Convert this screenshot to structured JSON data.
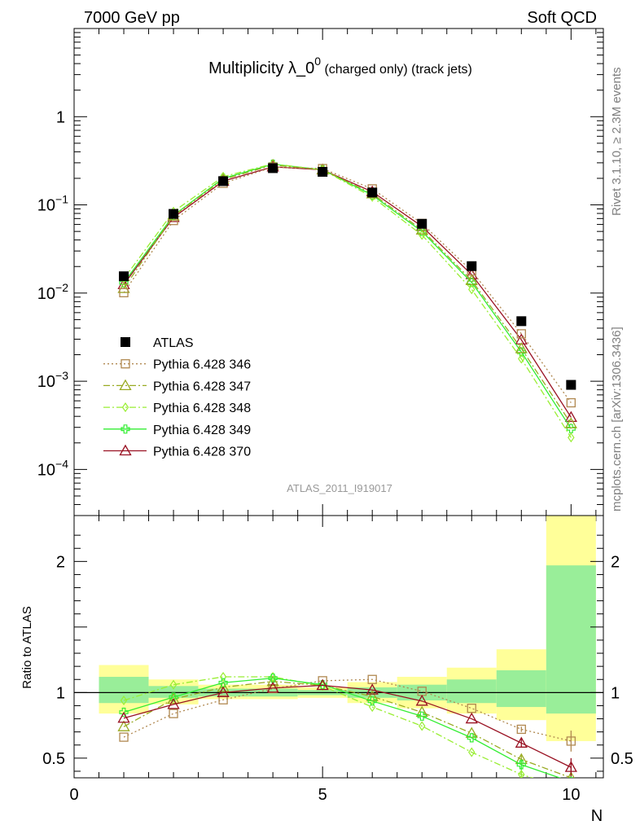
{
  "header": {
    "left": "7000 GeV pp",
    "right": "Soft QCD",
    "title_main": "Multiplicity λ_0",
    "title_sup": "0",
    "title_rest": " (charged only) (track jets)"
  },
  "side_labels": {
    "rivet": "Rivet 3.1.10, ≥ 2.3M events",
    "mcplots": "mcplots.cern.ch [arXiv:1306.3436]"
  },
  "analysis_id": "ATLAS_2011_I919017",
  "chart_data": [
    {
      "type": "scatter",
      "panel": "main",
      "log_y": true,
      "xlim": [
        0,
        10.65
      ],
      "ylim": [
        3e-05,
        10
      ],
      "grid": false,
      "legend_placement": "middle-left",
      "x": [
        1,
        2,
        3,
        4,
        5,
        6,
        7,
        8,
        9,
        10
      ],
      "y_ticks": [
        {
          "v": 1,
          "m": "1",
          "e": ""
        },
        {
          "v": 0.1,
          "m": "10",
          "e": "−1"
        },
        {
          "v": 0.01,
          "m": "10",
          "e": "−2"
        },
        {
          "v": 0.001,
          "m": "10",
          "e": "−3"
        },
        {
          "v": 0.0001,
          "m": "10",
          "e": "−4"
        }
      ],
      "series": [
        {
          "name": "ATLAS",
          "color": "#000000",
          "marker": "square-filled",
          "line": "none",
          "values": [
            0.0155,
            0.079,
            0.186,
            0.261,
            0.237,
            0.138,
            0.061,
            0.0202,
            0.0048,
            0.00091
          ]
        },
        {
          "name": "Pythia 6.428 346",
          "color": "#b08850",
          "marker": "square-open",
          "line": "dotted",
          "values": [
            0.0101,
            0.0665,
            0.176,
            0.268,
            0.258,
            0.152,
            0.0615,
            0.0178,
            0.00345,
            0.00057
          ]
        },
        {
          "name": "Pythia 6.428 347",
          "color": "#99aa22",
          "marker": "triangle-open",
          "line": "dashdot",
          "values": [
            0.0113,
            0.075,
            0.194,
            0.283,
            0.25,
            0.134,
            0.052,
            0.0139,
            0.00235,
            0.00033
          ]
        },
        {
          "name": "Pythia 6.428 348",
          "color": "#99ee33",
          "marker": "diamond-open",
          "line": "dashdot",
          "values": [
            0.0145,
            0.084,
            0.209,
            0.292,
            0.249,
            0.123,
            0.0455,
            0.011,
            0.0018,
            0.00023
          ]
        },
        {
          "name": "Pythia 6.428 349",
          "color": "#33ee33",
          "marker": "cross-open",
          "line": "solid",
          "values": [
            0.0131,
            0.076,
            0.2,
            0.289,
            0.251,
            0.129,
            0.05,
            0.0132,
            0.00215,
            0.00029
          ]
        },
        {
          "name": "Pythia 6.428 370",
          "color": "#991122",
          "marker": "triangle-open",
          "line": "solid",
          "values": [
            0.0125,
            0.072,
            0.186,
            0.27,
            0.25,
            0.141,
            0.057,
            0.0162,
            0.00295,
            0.00039
          ]
        }
      ]
    },
    {
      "type": "scatter",
      "panel": "ratio",
      "ylabel": "Ratio to ATLAS",
      "xlabel": "N",
      "xlim": [
        0,
        10.65
      ],
      "ylim": [
        0.35,
        2.35
      ],
      "reference_line": 1,
      "x_ticks": [
        {
          "v": 0,
          "t": "0"
        },
        {
          "v": 5,
          "t": "5"
        },
        {
          "v": 10,
          "t": "10"
        }
      ],
      "y_ticks": [
        {
          "v": 2,
          "t": "2"
        },
        {
          "v": 1,
          "t": "1"
        },
        {
          "v": 0.5,
          "t": "0.5"
        }
      ],
      "bands": [
        {
          "x0": 0.5,
          "x1": 1.5,
          "yellow": [
            0.84,
            1.21
          ],
          "green": [
            0.92,
            1.12
          ]
        },
        {
          "x0": 1.5,
          "x1": 2.5,
          "yellow": [
            0.91,
            1.1
          ],
          "green": [
            0.96,
            1.05
          ]
        },
        {
          "x0": 2.5,
          "x1": 3.5,
          "yellow": [
            0.95,
            1.06
          ],
          "green": [
            0.97,
            1.03
          ]
        },
        {
          "x0": 3.5,
          "x1": 4.5,
          "yellow": [
            0.95,
            1.06
          ],
          "green": [
            0.97,
            1.03
          ]
        },
        {
          "x0": 4.5,
          "x1": 5.5,
          "yellow": [
            0.96,
            1.04
          ],
          "green": [
            0.98,
            1.02
          ]
        },
        {
          "x0": 5.5,
          "x1": 6.5,
          "yellow": [
            0.92,
            1.08
          ],
          "green": [
            0.96,
            1.04
          ]
        },
        {
          "x0": 6.5,
          "x1": 7.5,
          "yellow": [
            0.88,
            1.12
          ],
          "green": [
            0.94,
            1.06
          ]
        },
        {
          "x0": 7.5,
          "x1": 8.5,
          "yellow": [
            0.84,
            1.19
          ],
          "green": [
            0.92,
            1.1
          ]
        },
        {
          "x0": 8.5,
          "x1": 9.5,
          "yellow": [
            0.79,
            1.33
          ],
          "green": [
            0.89,
            1.17
          ]
        },
        {
          "x0": 9.5,
          "x1": 10.5,
          "yellow": [
            0.63,
            2.35
          ],
          "green": [
            0.84,
            1.97
          ]
        }
      ],
      "series": [
        {
          "name": "Pythia 6.428 346",
          "values": [
            0.66,
            0.84,
            0.945,
            1.03,
            1.09,
            1.1,
            1.01,
            0.88,
            0.72,
            0.63
          ],
          "errors": [
            0,
            0,
            0,
            0,
            0,
            0,
            0,
            0,
            0.02,
            0.08
          ]
        },
        {
          "name": "Pythia 6.428 347",
          "values": [
            0.74,
            0.95,
            1.04,
            1.085,
            1.055,
            0.97,
            0.85,
            0.69,
            0.49,
            0.35
          ],
          "errors": [
            0,
            0,
            0,
            0,
            0,
            0,
            0,
            0,
            0.03,
            0.05
          ]
        },
        {
          "name": "Pythia 6.428 348",
          "values": [
            0.94,
            1.06,
            1.12,
            1.12,
            1.05,
            0.89,
            0.745,
            0.545,
            0.375,
            0.26
          ],
          "errors": [
            0,
            0,
            0,
            0,
            0,
            0,
            0,
            0,
            0.03,
            0.05
          ]
        },
        {
          "name": "Pythia 6.428 349",
          "values": [
            0.85,
            0.965,
            1.075,
            1.11,
            1.06,
            0.935,
            0.82,
            0.655,
            0.45,
            0.32
          ],
          "errors": [
            0,
            0,
            0,
            0,
            0,
            0,
            0,
            0,
            0.04,
            0.05
          ]
        },
        {
          "name": "Pythia 6.428 370",
          "values": [
            0.805,
            0.91,
            1.0,
            1.035,
            1.055,
            1.02,
            0.935,
            0.8,
            0.615,
            0.43
          ],
          "errors": [
            0,
            0,
            0,
            0,
            0,
            0,
            0,
            0,
            0.03,
            0.07
          ]
        }
      ]
    }
  ]
}
